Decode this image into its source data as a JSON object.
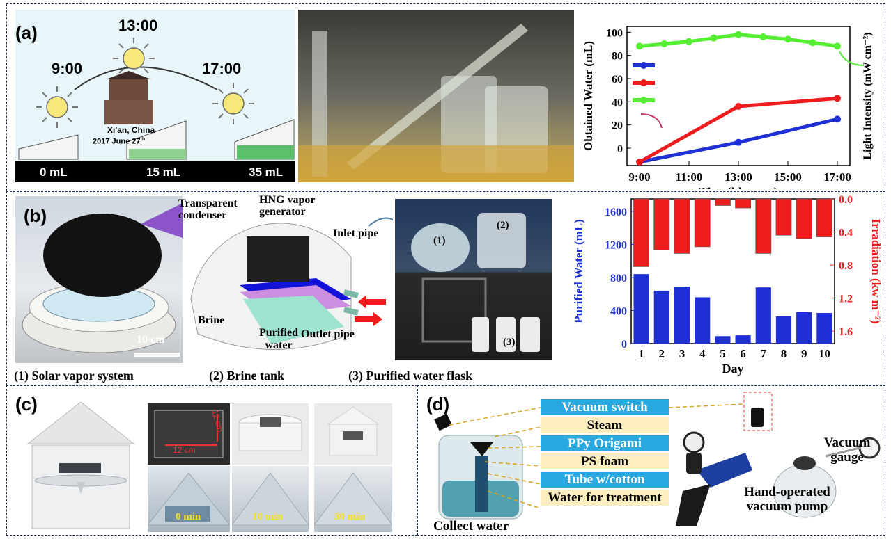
{
  "panel_a": {
    "label": "(a)",
    "times": {
      "t1": "9:00",
      "t2": "13:00",
      "t3": "17:00"
    },
    "location": "Xi'an, China",
    "date": "2017 June 27",
    "date_sup": "th",
    "volumes": {
      "v1": "0 mL",
      "v2": "15 mL",
      "v3": "35 mL"
    }
  },
  "panel_b": {
    "label": "(b)",
    "scale_bar": "10 cm",
    "diagram": {
      "condenser": "Transparent condenser",
      "generator": "HNG vapor generator",
      "inlet": "Inlet pipe",
      "brine": "Brine",
      "purified": "Purified water",
      "outlet": "Outlet pipe"
    },
    "photo_tags": {
      "p1": "(1)",
      "p2": "(2)",
      "p3": "(3)"
    },
    "caption": {
      "c1": "(1)  Solar vapor system",
      "c2": "(2)  Brine tank",
      "c3": "(3)  Purified water flask"
    }
  },
  "panel_c": {
    "label": "(c)",
    "dim_h": "12 cm",
    "dim_w": "12 cm",
    "times": {
      "t1": "0 min",
      "t2": "10 min",
      "t3": "30 min"
    }
  },
  "panel_d": {
    "label": "(d)",
    "items": [
      "Vacuum switch",
      "Steam",
      "PPy Origami",
      "PS foam",
      "Tube w/cotton",
      "Water for treatment"
    ],
    "collect": "Collect water",
    "pump": "Hand-operated vacuum pump",
    "gauge": "Vacuum gauge"
  },
  "colors": {
    "blue": "#1f2fd6",
    "red": "#ee1c1c",
    "green": "#55ee33",
    "sky": "#29a9e0",
    "cream": "#fdeec0"
  },
  "chart_data": [
    {
      "type": "line",
      "xlabel": "Time(hh: mm)",
      "ylabel": "Obtained Water  (mL)",
      "ylabel2": "Light Intensity (mW cm⁻²)",
      "x_ticks": [
        "9:00",
        "11:00",
        "13:00",
        "15:00",
        "17:00"
      ],
      "y_ticks": [
        "0",
        "20",
        "40",
        "60",
        "80",
        "100"
      ],
      "ylim": [
        -15,
        105
      ],
      "series": [
        {
          "color": "#1f2fd6",
          "axis": "left",
          "x": [
            "9:00",
            "13:00",
            "17:00"
          ],
          "values": [
            -12,
            5,
            25
          ]
        },
        {
          "color": "#ee1c1c",
          "axis": "left",
          "x": [
            "9:00",
            "13:00",
            "17:00"
          ],
          "values": [
            -12,
            36,
            43
          ]
        },
        {
          "color": "#55ee33",
          "axis": "right",
          "x": [
            "9:00",
            "10:00",
            "11:00",
            "12:00",
            "13:00",
            "14:00",
            "15:00",
            "16:00",
            "17:00"
          ],
          "values": [
            88,
            90,
            92,
            95,
            98,
            96,
            94,
            91,
            88
          ]
        }
      ]
    },
    {
      "type": "bar",
      "xlabel": "Day",
      "ylabel": "Purified Water  (mL)",
      "ylabel2": "Irradiation (kw m⁻²)",
      "categories": [
        "1",
        "2",
        "3",
        "4",
        "5",
        "6",
        "7",
        "8",
        "9",
        "10"
      ],
      "y_ticks": [
        "0",
        "400",
        "800",
        "1200",
        "1600"
      ],
      "y2_ticks": [
        "0.0",
        "0.4",
        "0.8",
        "1.2",
        "1.6"
      ],
      "ylim": [
        0,
        1750
      ],
      "y2lim": [
        0,
        1.75
      ],
      "series": [
        {
          "color": "#1f2fd6",
          "axis": "left",
          "values": [
            840,
            640,
            690,
            560,
            90,
            100,
            680,
            330,
            380,
            370
          ]
        },
        {
          "color": "#ee1c1c",
          "axis": "right_inverted",
          "values": [
            0.82,
            0.62,
            0.66,
            0.58,
            0.08,
            0.11,
            0.66,
            0.44,
            0.48,
            0.46
          ]
        }
      ]
    }
  ]
}
